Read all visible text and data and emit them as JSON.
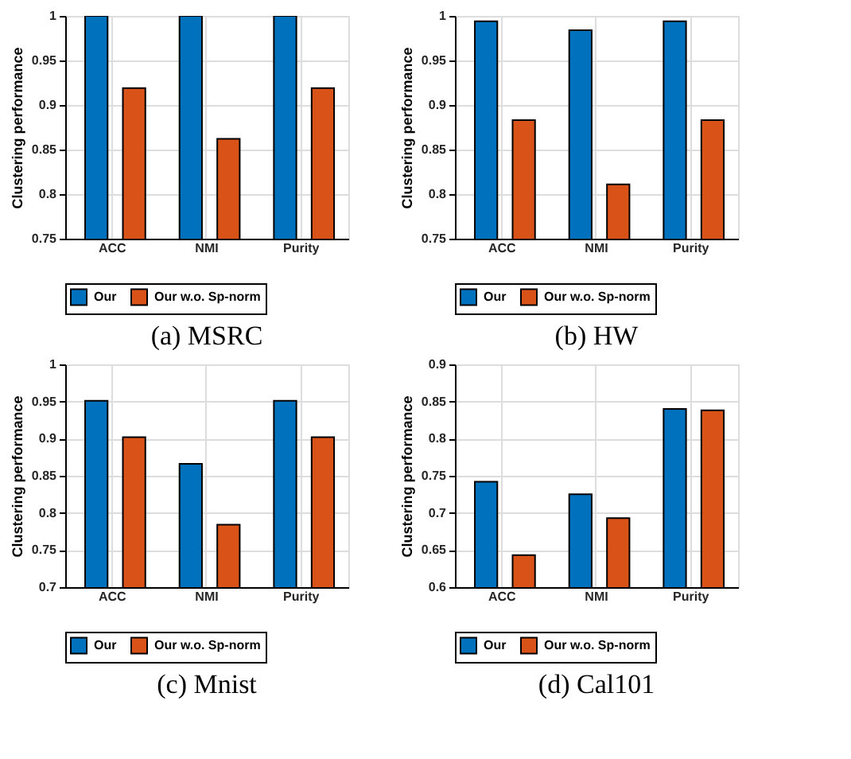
{
  "chart_data": [
    {
      "type": "bar",
      "title": "(a) MSRC",
      "ylabel": "Clustering performance",
      "categories": [
        "ACC",
        "NMI",
        "Purity"
      ],
      "series": [
        {
          "name": "Our",
          "color": "#0072bd",
          "values": [
            1,
            1,
            1
          ]
        },
        {
          "name": "Our w.o. Sp-norm",
          "color": "#d95319",
          "values": [
            0.919,
            0.862,
            0.919
          ]
        }
      ],
      "ylim": [
        0.75,
        1
      ],
      "yticks": [
        0.75,
        0.8,
        0.85,
        0.9,
        0.95,
        1
      ],
      "grid": true,
      "legend": "bottom"
    },
    {
      "type": "bar",
      "title": "(b) HW",
      "ylabel": "Clustering performance",
      "categories": [
        "ACC",
        "NMI",
        "Purity"
      ],
      "series": [
        {
          "name": "Our",
          "color": "#0072bd",
          "values": [
            0.994,
            0.984,
            0.994
          ]
        },
        {
          "name": "Our w.o. Sp-norm",
          "color": "#d95319",
          "values": [
            0.883,
            0.811,
            0.883
          ]
        }
      ],
      "ylim": [
        0.75,
        1
      ],
      "yticks": [
        0.75,
        0.8,
        0.85,
        0.9,
        0.95,
        1
      ],
      "grid": true,
      "legend": "bottom"
    },
    {
      "type": "bar",
      "title": "(c) Mnist",
      "ylabel": "Clustering performance",
      "categories": [
        "ACC",
        "NMI",
        "Purity"
      ],
      "series": [
        {
          "name": "Our",
          "color": "#0072bd",
          "values": [
            0.951,
            0.866,
            0.951
          ]
        },
        {
          "name": "Our w.o. Sp-norm",
          "color": "#d95319",
          "values": [
            0.902,
            0.784,
            0.902
          ]
        }
      ],
      "ylim": [
        0.7,
        1
      ],
      "yticks": [
        0.7,
        0.75,
        0.8,
        0.85,
        0.9,
        0.95,
        1
      ],
      "grid": true,
      "legend": "bottom"
    },
    {
      "type": "bar",
      "title": "(d) Cal101",
      "ylabel": "Clustering performance",
      "categories": [
        "ACC",
        "NMI",
        "Purity"
      ],
      "series": [
        {
          "name": "Our",
          "color": "#0072bd",
          "values": [
            0.742,
            0.725,
            0.84
          ]
        },
        {
          "name": "Our w.o. Sp-norm",
          "color": "#d95319",
          "values": [
            0.643,
            0.693,
            0.838
          ]
        }
      ],
      "ylim": [
        0.6,
        0.9
      ],
      "yticks": [
        0.6,
        0.65,
        0.7,
        0.75,
        0.8,
        0.85,
        0.9
      ],
      "grid": true,
      "legend": "bottom"
    }
  ]
}
